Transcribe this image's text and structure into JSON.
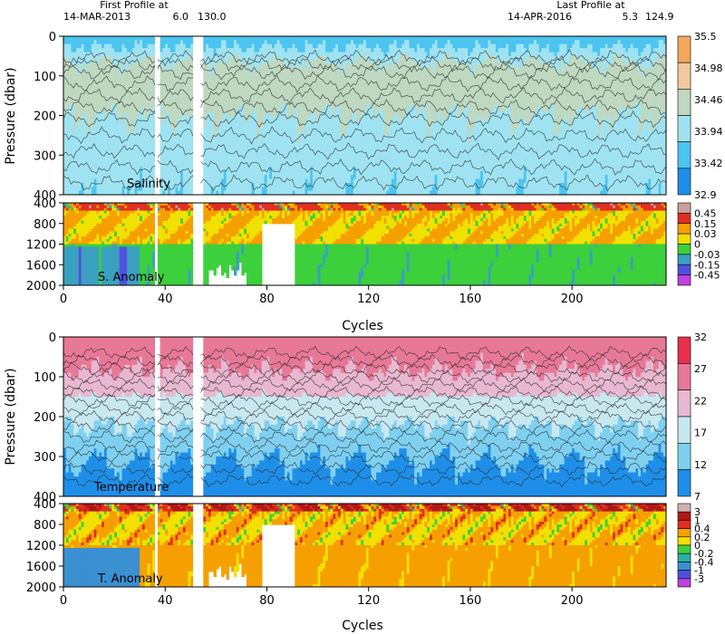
{
  "header": {
    "first_profile_label": "First Profile at",
    "first_profile_date": "14-MAR-2013",
    "first_profile_lat": "6.0",
    "first_profile_lon": "130.0",
    "last_profile_label": "Last Profile at",
    "last_profile_date": "14-APR-2016",
    "last_profile_lat": "5.3",
    "last_profile_lon": "124.9"
  },
  "colors": {
    "frame": "#000000",
    "background": "#ffffff",
    "contour": "#2b2b2b"
  },
  "chart_data": [
    {
      "type": "heatmap",
      "title": "Salinity",
      "ylabel": "Pressure (dbar)",
      "xlim": [
        0,
        237
      ],
      "ylim": [
        400,
        0
      ],
      "yticks": [
        0,
        100,
        200,
        300,
        400
      ],
      "colorbar": {
        "levels": [
          "32.9",
          "33.42",
          "33.94",
          "34.46",
          "34.98",
          "35.5"
        ],
        "colors": [
          "#1e8fe8",
          "#4cc4f0",
          "#9fe3f2",
          "#bfd8c0",
          "#f2c9a0",
          "#f5a85a"
        ]
      },
      "gaps": [
        [
          36,
          37
        ],
        [
          51,
          54
        ]
      ],
      "profile": [
        {
          "p": 0,
          "value": 33.6
        },
        {
          "p": 60,
          "value": 34.5
        },
        {
          "p": 110,
          "value": 34.7
        },
        {
          "p": 180,
          "value": 34.5
        },
        {
          "p": 280,
          "value": 34.2
        },
        {
          "p": 400,
          "value": 34.0
        }
      ]
    },
    {
      "type": "heatmap",
      "title": "S. Anomaly",
      "xlim": [
        0,
        237
      ],
      "ylim": [
        2000,
        400
      ],
      "yticks": [
        400,
        800,
        1200,
        1600,
        2000
      ],
      "colorbar": {
        "levels": [
          "-0.45",
          "-0.15",
          "-0.03",
          "0",
          "0.03",
          "0.15",
          "0.45"
        ],
        "colors": [
          "#c040e0",
          "#5050e0",
          "#3aa0c0",
          "#3cd03c",
          "#f2e000",
          "#f5a000",
          "#e03020",
          "#c8a0a0"
        ]
      },
      "dominant_value": -0.02
    },
    {
      "type": "heatmap",
      "title": "Temperature",
      "xlabel": "Cycles",
      "ylabel": "Pressure (dbar)",
      "xlim": [
        0,
        237
      ],
      "ylim": [
        400,
        0
      ],
      "xticks": [
        0,
        40,
        80,
        120,
        160,
        200
      ],
      "yticks": [
        0,
        100,
        200,
        300,
        400
      ],
      "colorbar": {
        "levels": [
          "7",
          "12",
          "17",
          "22",
          "27",
          "32"
        ],
        "colors": [
          "#1e8fe8",
          "#7fd0f0",
          "#c8e8f0",
          "#e8b8d0",
          "#e87898",
          "#e8304c"
        ]
      },
      "gaps": [
        [
          36,
          37
        ],
        [
          51,
          54
        ]
      ],
      "profile": [
        {
          "p": 0,
          "value": 29.5
        },
        {
          "p": 60,
          "value": 28.5
        },
        {
          "p": 120,
          "value": 24
        },
        {
          "p": 180,
          "value": 19
        },
        {
          "p": 250,
          "value": 15
        },
        {
          "p": 330,
          "value": 11
        },
        {
          "p": 400,
          "value": 8
        }
      ]
    },
    {
      "type": "heatmap",
      "title": "T. Anomaly",
      "xlabel": "Cycles",
      "xlim": [
        0,
        237
      ],
      "ylim": [
        2000,
        400
      ],
      "xticks": [
        0,
        40,
        80,
        120,
        160,
        200
      ],
      "yticks": [
        400,
        800,
        1200,
        1600,
        2000
      ],
      "colorbar": {
        "levels": [
          "-3",
          "-1",
          "-0.4",
          "-0.2",
          "0",
          "0.2",
          "0.4",
          "1",
          "3"
        ],
        "colors": [
          "#c040e0",
          "#5050e0",
          "#3a90d0",
          "#2ab0a0",
          "#3cd03c",
          "#f2e000",
          "#f5a000",
          "#e03020",
          "#b01818",
          "#d0b0b0"
        ]
      },
      "dominant_value": 0.25
    }
  ]
}
